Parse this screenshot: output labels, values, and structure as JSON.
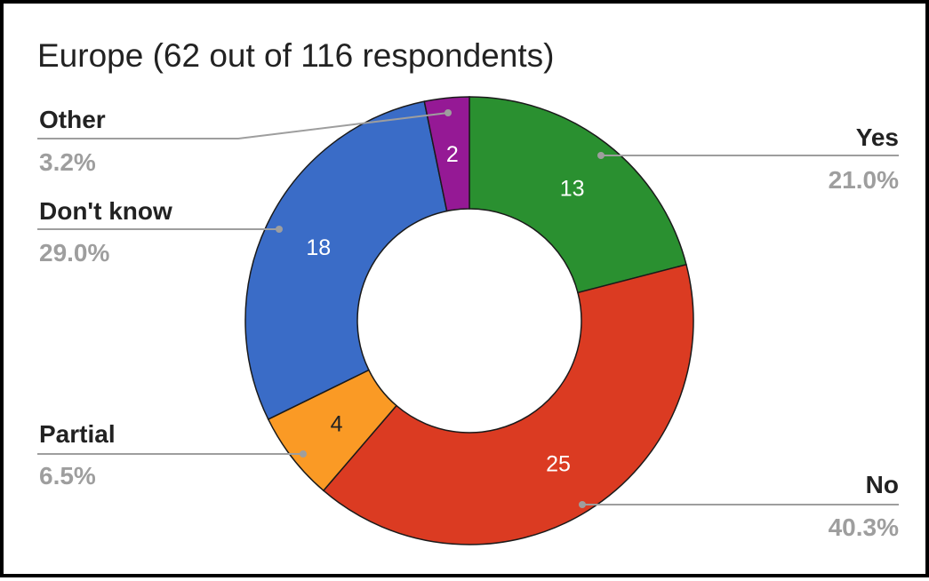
{
  "title": "Europe (62 out of 116 respondents)",
  "chart_data": {
    "type": "pie",
    "donut": true,
    "title": "Europe (62 out of 116 respondents)",
    "total": 62,
    "slices": [
      {
        "label": "Yes",
        "value": 13,
        "percent": "21.0%",
        "color": "#2a9030",
        "label_color": "#ffffff",
        "side": "right"
      },
      {
        "label": "No",
        "value": 25,
        "percent": "40.3%",
        "color": "#db3b22",
        "label_color": "#ffffff",
        "side": "right"
      },
      {
        "label": "Partial",
        "value": 4,
        "percent": "6.5%",
        "color": "#fa9a25",
        "label_color": "#222222",
        "side": "left"
      },
      {
        "label": "Don't know",
        "value": 18,
        "percent": "29.0%",
        "color": "#3a6cc7",
        "label_color": "#ffffff",
        "side": "left"
      },
      {
        "label": "Other",
        "value": 2,
        "percent": "3.2%",
        "color": "#951995",
        "label_color": "#ffffff",
        "side": "left"
      }
    ],
    "legend": "callouts"
  }
}
